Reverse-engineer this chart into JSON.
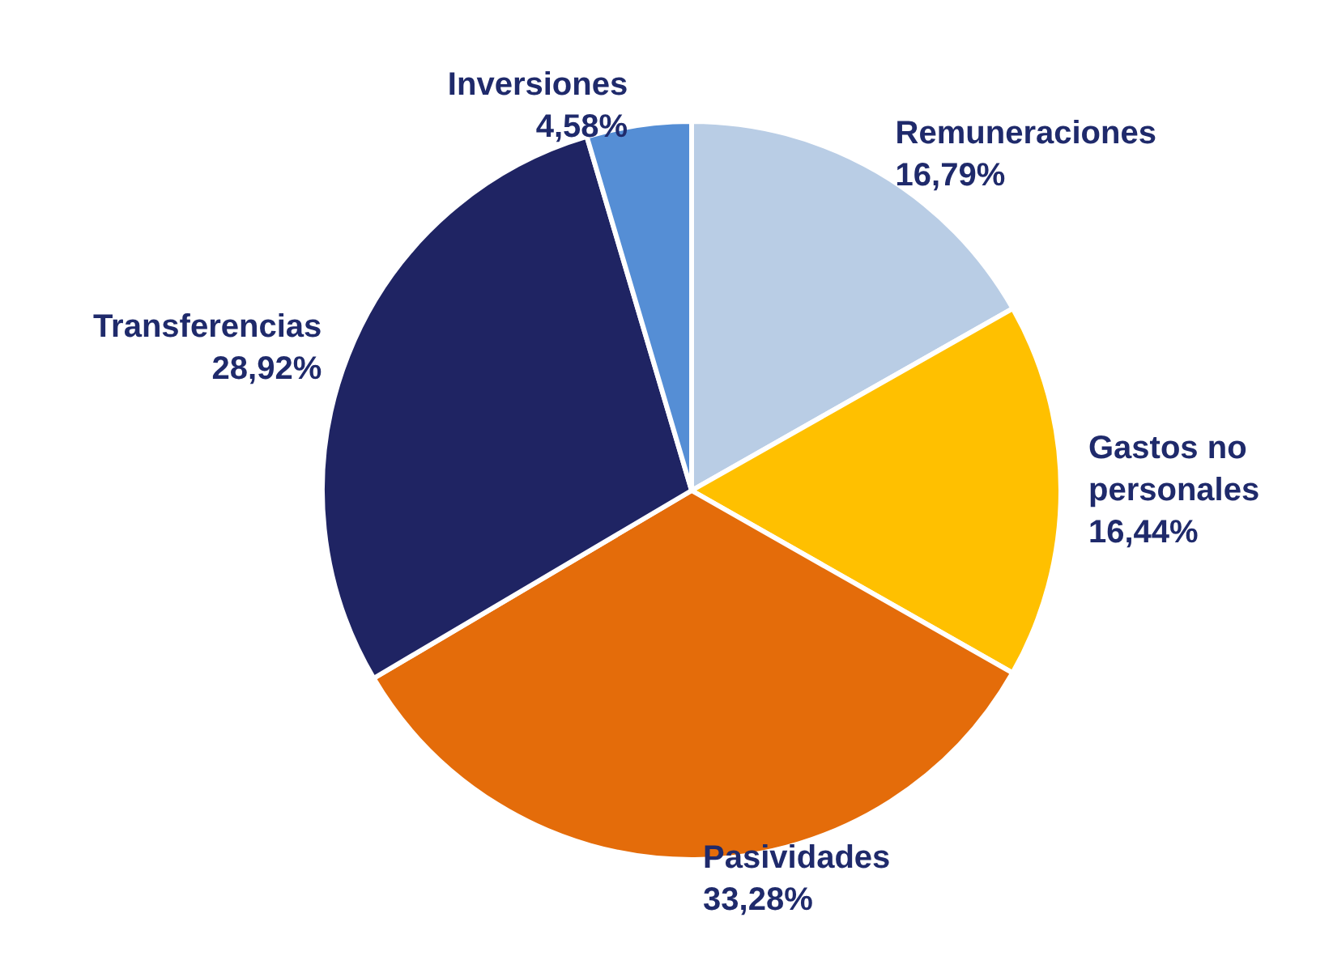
{
  "chart_data": {
    "type": "pie",
    "categories": [
      "Remuneraciones",
      "Gastos no personales",
      "Pasividades",
      "Transferencias",
      "Inversiones"
    ],
    "values": [
      16.79,
      16.44,
      33.28,
      28.92,
      4.58
    ],
    "value_labels": [
      "16,79%",
      "16,44%",
      "33,28%",
      "28,92%",
      "4,58%"
    ],
    "colors": [
      "#b9cde5",
      "#ffc000",
      "#e46c0a",
      "#1f2463",
      "#558ed5"
    ]
  }
}
